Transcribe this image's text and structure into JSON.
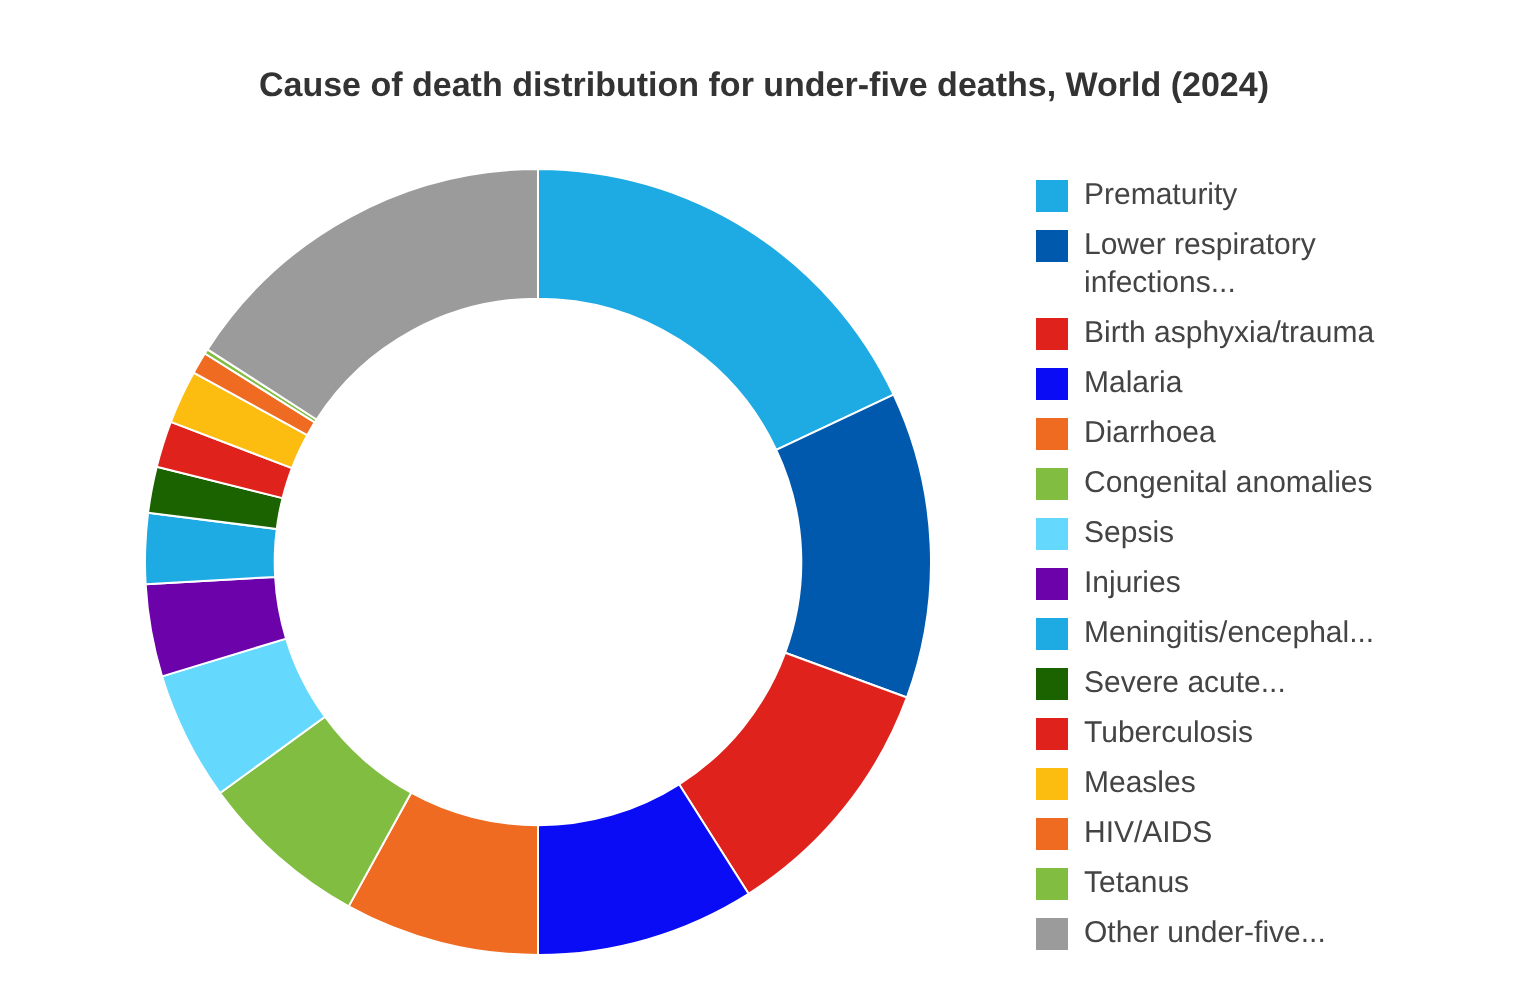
{
  "chart_data": {
    "type": "donut",
    "title": "Cause of death distribution for under-five deaths, World (2024)",
    "categories": [
      "Prematurity",
      "Lower respiratory infections...",
      "Birth asphyxia/trauma",
      "Malaria",
      "Diarrhoea",
      "Congenital anomalies",
      "Sepsis",
      "Injuries",
      "Meningitis/encephal...",
      "Severe acute...",
      "Tuberculosis",
      "Measles",
      "HIV/AIDS",
      "Tetanus",
      "Other under-five..."
    ],
    "values": [
      18.0,
      12.6,
      10.4,
      9.0,
      8.0,
      7.0,
      5.3,
      3.8,
      2.9,
      1.9,
      1.9,
      2.2,
      0.9,
      0.2,
      15.9
    ],
    "colors": [
      "#1eaae2",
      "#0059ad",
      "#e0221c",
      "#0a0cf5",
      "#f06b22",
      "#80bd41",
      "#65d8fd",
      "#6c02aa",
      "#1eaae2",
      "#1b6200",
      "#e0221c",
      "#fdbd10",
      "#f06b22",
      "#80bd41",
      "#9b9b9b"
    ],
    "legend": "right"
  }
}
